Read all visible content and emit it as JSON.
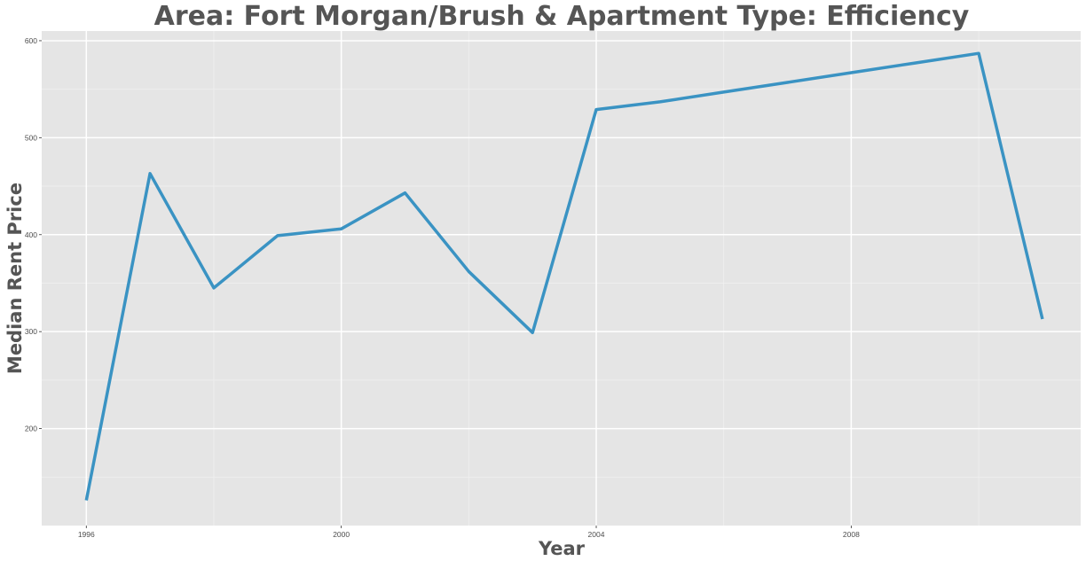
{
  "chart_data": {
    "type": "line",
    "title": "Area: Fort Morgan/Brush & Apartment Type: Efficiency",
    "xlabel": "Year",
    "ylabel": "Median Rent Price",
    "xlim": [
      1995.3,
      2011.6
    ],
    "ylim": [
      100,
      610
    ],
    "x_ticks": [
      1996,
      2000,
      2004,
      2008
    ],
    "y_ticks": [
      200,
      300,
      400,
      500,
      600
    ],
    "grid": true,
    "legend": "none",
    "colors": {
      "panel": "#e5e5e5",
      "grid_major": "#ffffff",
      "line": "#3a93c3",
      "text": "#555555",
      "tick_text": "#4d4d4d"
    },
    "series": [
      {
        "x": [
          1996,
          1997,
          1998,
          1999,
          2000,
          2001,
          2002,
          2003,
          2004,
          2005,
          2006,
          2007,
          2008,
          2009,
          2010,
          2011
        ],
        "values": [
          126,
          463,
          345,
          399,
          406,
          443,
          362,
          299,
          529,
          537,
          547,
          557,
          567,
          577,
          587,
          313
        ]
      }
    ]
  }
}
